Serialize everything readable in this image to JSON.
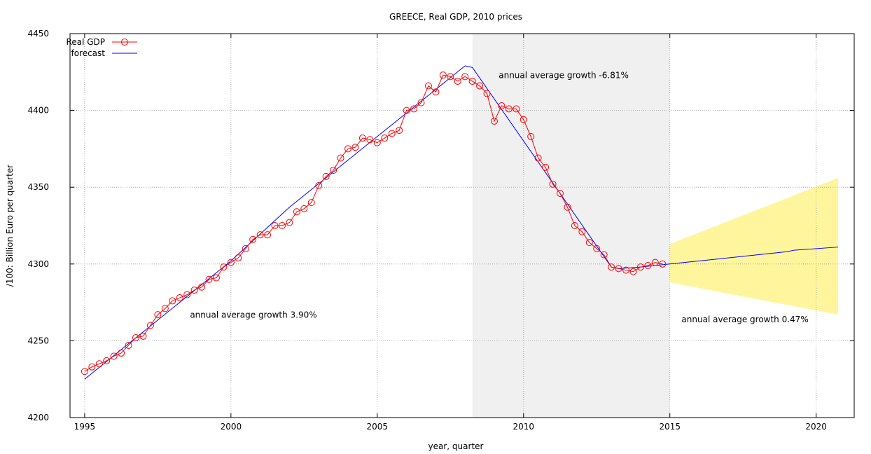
{
  "chart_data": {
    "type": "line",
    "title": "GREECE, Real GDP, 2010 prices",
    "xlabel": "year, quarter",
    "ylabel": "/100:  Billion Euro per quarter",
    "xlim": [
      1994.5,
      2021.3
    ],
    "ylim": [
      4200,
      4450
    ],
    "x_ticks": [
      1995,
      2000,
      2005,
      2010,
      2015,
      2020
    ],
    "y_ticks": [
      4200,
      4250,
      4300,
      4350,
      4400,
      4450
    ],
    "grid": true,
    "legend_position": "top-left",
    "shaded_region": {
      "x_start": 2008.25,
      "x_end": 2015.0,
      "color": "#f0f0f0"
    },
    "colors": {
      "real_gdp": "#ff0000",
      "forecast": "#0000ff",
      "band": "#fff59d",
      "shade": "#f0f0f0"
    },
    "series": [
      {
        "name": "Real GDP",
        "marker": "circle",
        "x": [
          1995.0,
          1995.25,
          1995.5,
          1995.75,
          1996.0,
          1996.25,
          1996.5,
          1996.75,
          1997.0,
          1997.25,
          1997.5,
          1997.75,
          1998.0,
          1998.25,
          1998.5,
          1998.75,
          1999.0,
          1999.25,
          1999.5,
          1999.75,
          2000.0,
          2000.25,
          2000.5,
          2000.75,
          2001.0,
          2001.25,
          2001.5,
          2001.75,
          2002.0,
          2002.25,
          2002.5,
          2002.75,
          2003.0,
          2003.25,
          2003.5,
          2003.75,
          2004.0,
          2004.25,
          2004.5,
          2004.75,
          2005.0,
          2005.25,
          2005.5,
          2005.75,
          2006.0,
          2006.25,
          2006.5,
          2006.75,
          2007.0,
          2007.25,
          2007.5,
          2007.75,
          2008.0,
          2008.25,
          2008.5,
          2008.75,
          2009.0,
          2009.25,
          2009.5,
          2009.75,
          2010.0,
          2010.25,
          2010.5,
          2010.75,
          2011.0,
          2011.25,
          2011.5,
          2011.75,
          2012.0,
          2012.25,
          2012.5,
          2012.75,
          2013.0,
          2013.25,
          2013.5,
          2013.75,
          2014.0,
          2014.25,
          2014.5,
          2014.75
        ],
        "values": [
          4230,
          4233,
          4235,
          4237,
          4240,
          4242,
          4247,
          4252,
          4253,
          4260,
          4267,
          4271,
          4276,
          4278,
          4280,
          4283,
          4285,
          4290,
          4291,
          4298,
          4301,
          4304,
          4310,
          4316,
          4319,
          4319,
          4325,
          4325,
          4327,
          4334,
          4336,
          4340,
          4351,
          4357,
          4361,
          4369,
          4375,
          4376,
          4382,
          4381,
          4379,
          4382,
          4385,
          4387,
          4400,
          4401,
          4405,
          4416,
          4412,
          4423,
          4422,
          4419,
          4422,
          4419,
          4416,
          4411,
          4393,
          4403,
          4401,
          4401,
          4394,
          4383,
          4369,
          4363,
          4352,
          4346,
          4337,
          4325,
          4321,
          4314,
          4310,
          4306,
          4298,
          4297,
          4296,
          4295,
          4298,
          4299,
          4301,
          4300
        ]
      },
      {
        "name": "forecast",
        "x": [
          1995.0,
          2000.0,
          2002.0,
          2008.0,
          2008.25,
          2013.0,
          2013.25,
          2014.0,
          2015.0,
          2019.0,
          2019.25,
          2020.75
        ],
        "values": [
          4225,
          4302,
          4337,
          4429,
          4428,
          4298,
          4297,
          4298,
          4300,
          4308,
          4309,
          4311
        ]
      },
      {
        "name": "forecast band",
        "x": [
          2015.0,
          2020.75
        ],
        "upper": [
          4313,
          4356
        ],
        "lower": [
          4288,
          4267
        ]
      }
    ],
    "annotations": [
      {
        "text": "annual average growth 3.90%",
        "x": 1998.6,
        "y": 4265
      },
      {
        "text": "annual average growth -6.81%",
        "x": 2009.15,
        "y": 4421
      },
      {
        "text": "annual average growth 0.47%",
        "x": 2015.4,
        "y": 4262
      }
    ]
  }
}
